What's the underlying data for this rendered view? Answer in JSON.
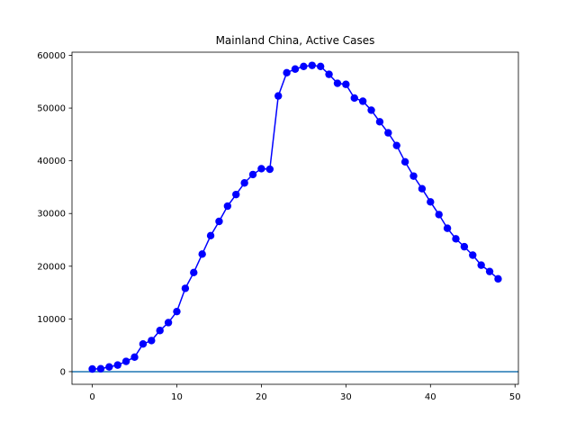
{
  "chart_data": {
    "type": "line",
    "title": "Mainland China, Active Cases",
    "xlabel": "",
    "ylabel": "",
    "xlim": [
      -2.4,
      50.4
    ],
    "ylim": [
      -2400,
      60600
    ],
    "xticks": [
      0,
      10,
      20,
      30,
      40,
      50
    ],
    "yticks": [
      0,
      10000,
      20000,
      30000,
      40000,
      50000,
      60000
    ],
    "grid": false,
    "series": [
      {
        "color": "#0000ff",
        "marker": "circle",
        "x": [
          0,
          1,
          2,
          3,
          4,
          5,
          6,
          7,
          8,
          9,
          10,
          11,
          12,
          13,
          14,
          15,
          16,
          17,
          18,
          19,
          20,
          21,
          22,
          23,
          24,
          25,
          26,
          27,
          28,
          29,
          30,
          31,
          32,
          33,
          34,
          35,
          36,
          37,
          38,
          39,
          40,
          41,
          42,
          43,
          44,
          45,
          46,
          47,
          48
        ],
        "values": [
          500,
          550,
          900,
          1250,
          1950,
          2750,
          5250,
          5900,
          7800,
          9300,
          11400,
          15800,
          18800,
          22300,
          25800,
          28500,
          31400,
          33600,
          35800,
          37400,
          38500,
          38400,
          52300,
          56700,
          57400,
          57900,
          58100,
          57900,
          56400,
          54700,
          54500,
          51900,
          51300,
          49600,
          47400,
          45300,
          42900,
          39800,
          37100,
          34700,
          32200,
          29800,
          27200,
          25200,
          23700,
          22100,
          20200,
          19000,
          17600
        ]
      }
    ],
    "reference_line": {
      "y": 0,
      "color": "#1f77b4"
    }
  }
}
